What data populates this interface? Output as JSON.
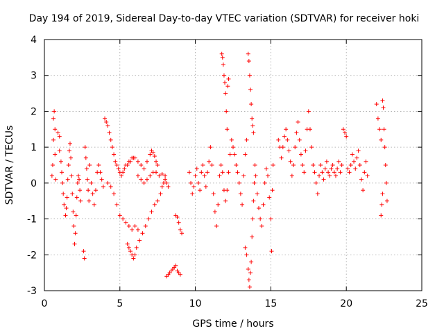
{
  "chart_data": {
    "type": "scatter",
    "title": "Day 194 of 2019, Sidereal Day-to-day VTEC variation (SDTVAR) for receiver hoki",
    "xlabel": "GPS time / hours",
    "ylabel": "SDTVAR / TECUs",
    "xlim": [
      0,
      25
    ],
    "ylim": [
      -3,
      4
    ],
    "xticks": [
      "0",
      "5",
      "10",
      "15",
      "20",
      "25"
    ],
    "yticks": [
      "-3",
      "-2",
      "-1",
      "0",
      "1",
      "2",
      "3",
      "4"
    ],
    "grid": true,
    "marker": "+",
    "color": "#ff0000",
    "series": [
      {
        "name": "SDTVAR",
        "points": [
          [
            0.5,
            0.2
          ],
          [
            0.55,
            0.5
          ],
          [
            0.6,
            1.2
          ],
          [
            0.6,
            1.8
          ],
          [
            0.65,
            2.0
          ],
          [
            0.7,
            1.5
          ],
          [
            0.7,
            0.8
          ],
          [
            0.75,
            0.1
          ],
          [
            0.9,
            1.4
          ],
          [
            1.0,
            1.3
          ],
          [
            1.0,
            0.9
          ],
          [
            1.1,
            0.6
          ],
          [
            1.15,
            0.3
          ],
          [
            1.2,
            0.0
          ],
          [
            1.25,
            -0.3
          ],
          [
            1.3,
            -0.6
          ],
          [
            1.4,
            -0.9
          ],
          [
            1.45,
            -0.7
          ],
          [
            1.5,
            -0.4
          ],
          [
            1.55,
            0.1
          ],
          [
            1.6,
            0.5
          ],
          [
            1.65,
            0.9
          ],
          [
            1.7,
            1.1
          ],
          [
            1.75,
            0.7
          ],
          [
            1.8,
            0.2
          ],
          [
            1.85,
            -0.3
          ],
          [
            1.9,
            -0.8
          ],
          [
            1.95,
            -1.2
          ],
          [
            2.0,
            -1.7
          ],
          [
            2.05,
            -1.4
          ],
          [
            2.1,
            -0.9
          ],
          [
            2.15,
            -0.4
          ],
          [
            2.2,
            0.0
          ],
          [
            2.25,
            0.2
          ],
          [
            2.3,
            0.1
          ],
          [
            2.35,
            -0.2
          ],
          [
            2.4,
            -0.5
          ],
          [
            2.6,
            -1.9
          ],
          [
            2.65,
            -2.1
          ],
          [
            2.7,
            1.0
          ],
          [
            2.75,
            0.7
          ],
          [
            2.8,
            0.4
          ],
          [
            2.85,
            0.1
          ],
          [
            2.9,
            -0.2
          ],
          [
            2.95,
            -0.5
          ],
          [
            3.0,
            0.5
          ],
          [
            3.1,
            0.0
          ],
          [
            3.2,
            -0.3
          ],
          [
            3.3,
            -0.6
          ],
          [
            3.4,
            -0.2
          ],
          [
            3.5,
            0.3
          ],
          [
            3.6,
            0.5
          ],
          [
            3.7,
            0.3
          ],
          [
            3.8,
            0.1
          ],
          [
            3.9,
            -0.1
          ],
          [
            4.0,
            1.8
          ],
          [
            4.1,
            1.7
          ],
          [
            4.2,
            1.6
          ],
          [
            4.3,
            1.4
          ],
          [
            4.4,
            1.2
          ],
          [
            4.5,
            1.0
          ],
          [
            4.6,
            0.8
          ],
          [
            4.7,
            0.6
          ],
          [
            4.8,
            0.5
          ],
          [
            4.9,
            0.4
          ],
          [
            5.0,
            0.3
          ],
          [
            5.1,
            0.2
          ],
          [
            5.2,
            0.3
          ],
          [
            5.3,
            0.4
          ],
          [
            5.4,
            0.5
          ],
          [
            5.5,
            0.5
          ],
          [
            5.6,
            0.6
          ],
          [
            5.7,
            0.6
          ],
          [
            5.8,
            0.7
          ],
          [
            5.9,
            0.7
          ],
          [
            6.0,
            0.7
          ],
          [
            6.2,
            0.6
          ],
          [
            6.4,
            0.5
          ],
          [
            6.6,
            0.4
          ],
          [
            6.8,
            0.6
          ],
          [
            7.0,
            0.8
          ],
          [
            7.1,
            0.9
          ],
          [
            7.2,
            0.85
          ],
          [
            7.3,
            0.75
          ],
          [
            7.4,
            0.6
          ],
          [
            7.5,
            0.5
          ],
          [
            4.2,
            0.0
          ],
          [
            4.4,
            -0.1
          ],
          [
            4.6,
            -0.3
          ],
          [
            4.8,
            -0.6
          ],
          [
            5.0,
            -0.9
          ],
          [
            5.2,
            -1.0
          ],
          [
            5.4,
            -1.1
          ],
          [
            5.6,
            -1.2
          ],
          [
            5.8,
            -1.3
          ],
          [
            6.0,
            -1.2
          ],
          [
            6.2,
            -1.3
          ],
          [
            5.5,
            -1.7
          ],
          [
            5.6,
            -1.8
          ],
          [
            5.7,
            -1.9
          ],
          [
            5.8,
            -2.0
          ],
          [
            5.9,
            -2.1
          ],
          [
            6.0,
            -2.0
          ],
          [
            6.1,
            -1.8
          ],
          [
            6.3,
            -1.6
          ],
          [
            6.5,
            -1.4
          ],
          [
            6.7,
            -1.2
          ],
          [
            6.9,
            -1.0
          ],
          [
            7.1,
            -0.8
          ],
          [
            7.3,
            -0.6
          ],
          [
            7.5,
            -0.5
          ],
          [
            7.7,
            -0.3
          ],
          [
            7.8,
            -0.1
          ],
          [
            7.9,
            0.0
          ],
          [
            8.0,
            0.1
          ],
          [
            8.1,
            0.0
          ],
          [
            8.2,
            -0.1
          ],
          [
            6.2,
            0.2
          ],
          [
            6.4,
            0.1
          ],
          [
            6.6,
            0.0
          ],
          [
            6.8,
            0.1
          ],
          [
            7.0,
            0.2
          ],
          [
            7.2,
            0.3
          ],
          [
            7.4,
            0.3
          ],
          [
            7.6,
            0.2
          ],
          [
            7.8,
            0.25
          ],
          [
            8.0,
            0.2
          ],
          [
            8.1,
            -2.6
          ],
          [
            8.2,
            -2.55
          ],
          [
            8.3,
            -2.5
          ],
          [
            8.4,
            -2.45
          ],
          [
            8.5,
            -2.4
          ],
          [
            8.6,
            -2.35
          ],
          [
            8.7,
            -2.3
          ],
          [
            8.8,
            -2.45
          ],
          [
            8.9,
            -2.5
          ],
          [
            9.0,
            -2.55
          ],
          [
            8.7,
            -0.9
          ],
          [
            8.8,
            -0.95
          ],
          [
            8.9,
            -1.1
          ],
          [
            9.0,
            -1.3
          ],
          [
            9.1,
            -1.4
          ],
          [
            9.6,
            0.3
          ],
          [
            9.7,
            0.0
          ],
          [
            9.8,
            -0.3
          ],
          [
            9.9,
            -0.1
          ],
          [
            10.0,
            0.2
          ],
          [
            10.1,
            0.4
          ],
          [
            10.2,
            0.0
          ],
          [
            10.3,
            -0.2
          ],
          [
            10.4,
            0.3
          ],
          [
            10.5,
            0.5
          ],
          [
            10.6,
            0.2
          ],
          [
            10.7,
            -0.1
          ],
          [
            10.8,
            0.3
          ],
          [
            10.9,
            0.6
          ],
          [
            11.0,
            1.0
          ],
          [
            11.1,
            0.5
          ],
          [
            11.2,
            -0.3
          ],
          [
            11.3,
            -0.8
          ],
          [
            11.4,
            -1.2
          ],
          [
            11.5,
            -0.6
          ],
          [
            11.6,
            0.2
          ],
          [
            11.7,
            0.5
          ],
          [
            11.8,
            0.3
          ],
          [
            11.9,
            -0.2
          ],
          [
            12.0,
            -0.5
          ],
          [
            12.1,
            -0.2
          ],
          [
            12.2,
            0.3
          ],
          [
            12.3,
            0.8
          ],
          [
            12.4,
            1.2
          ],
          [
            12.5,
            1.0
          ],
          [
            12.6,
            0.8
          ],
          [
            11.75,
            3.6
          ],
          [
            11.8,
            3.5
          ],
          [
            11.85,
            3.3
          ],
          [
            11.9,
            3.0
          ],
          [
            11.95,
            2.8
          ],
          [
            12.0,
            2.5
          ],
          [
            12.05,
            2.0
          ],
          [
            12.1,
            1.5
          ],
          [
            12.15,
            2.7
          ],
          [
            12.2,
            2.9
          ],
          [
            12.7,
            0.5
          ],
          [
            12.8,
            0.3
          ],
          [
            12.9,
            0.0
          ],
          [
            13.0,
            -0.3
          ],
          [
            13.1,
            -0.6
          ],
          [
            13.2,
            0.2
          ],
          [
            13.3,
            0.8
          ],
          [
            13.4,
            1.2
          ],
          [
            13.5,
            3.6
          ],
          [
            13.55,
            3.4
          ],
          [
            13.6,
            3.0
          ],
          [
            13.65,
            2.6
          ],
          [
            13.7,
            2.2
          ],
          [
            13.75,
            1.8
          ],
          [
            13.8,
            1.6
          ],
          [
            13.85,
            1.4
          ],
          [
            13.3,
            -1.8
          ],
          [
            13.4,
            -2.0
          ],
          [
            13.5,
            -2.4
          ],
          [
            13.55,
            -2.7
          ],
          [
            13.6,
            -2.9
          ],
          [
            13.65,
            -2.5
          ],
          [
            13.7,
            -2.2
          ],
          [
            13.75,
            -1.5
          ],
          [
            13.8,
            -1.0
          ],
          [
            13.85,
            -0.5
          ],
          [
            13.9,
            0.0
          ],
          [
            13.95,
            0.5
          ],
          [
            14.0,
            0.2
          ],
          [
            14.1,
            -0.3
          ],
          [
            14.2,
            -0.7
          ],
          [
            14.3,
            -1.0
          ],
          [
            14.4,
            -1.2
          ],
          [
            14.5,
            -0.6
          ],
          [
            14.6,
            0.0
          ],
          [
            14.7,
            0.4
          ],
          [
            14.8,
            0.2
          ],
          [
            14.9,
            -0.4
          ],
          [
            15.0,
            -1.0
          ],
          [
            15.05,
            -1.9
          ],
          [
            15.1,
            -0.2
          ],
          [
            15.15,
            0.5
          ],
          [
            15.5,
            1.2
          ],
          [
            15.6,
            1.0
          ],
          [
            15.7,
            0.7
          ],
          [
            15.8,
            1.0
          ],
          [
            15.9,
            1.3
          ],
          [
            16.0,
            1.5
          ],
          [
            16.1,
            1.2
          ],
          [
            16.2,
            0.9
          ],
          [
            16.3,
            0.6
          ],
          [
            16.4,
            0.2
          ],
          [
            16.5,
            0.5
          ],
          [
            16.6,
            1.0
          ],
          [
            16.7,
            1.4
          ],
          [
            16.8,
            1.7
          ],
          [
            16.9,
            1.2
          ],
          [
            17.0,
            0.8
          ],
          [
            17.1,
            0.5
          ],
          [
            17.2,
            0.3
          ],
          [
            17.3,
            0.9
          ],
          [
            17.4,
            1.5
          ],
          [
            17.5,
            2.0
          ],
          [
            17.6,
            1.5
          ],
          [
            17.7,
            1.0
          ],
          [
            17.8,
            0.5
          ],
          [
            17.9,
            0.3
          ],
          [
            18.0,
            0.0
          ],
          [
            18.1,
            -0.3
          ],
          [
            18.2,
            0.2
          ],
          [
            18.3,
            0.5
          ],
          [
            18.4,
            0.3
          ],
          [
            18.5,
            0.1
          ],
          [
            18.6,
            0.4
          ],
          [
            18.7,
            0.6
          ],
          [
            18.8,
            0.3
          ],
          [
            18.9,
            0.2
          ],
          [
            19.0,
            0.4
          ],
          [
            19.1,
            0.5
          ],
          [
            19.2,
            0.3
          ],
          [
            19.3,
            0.2
          ],
          [
            19.4,
            0.4
          ],
          [
            19.5,
            0.6
          ],
          [
            19.6,
            0.3
          ],
          [
            19.7,
            0.5
          ],
          [
            19.8,
            1.5
          ],
          [
            19.9,
            1.4
          ],
          [
            20.0,
            1.3
          ],
          [
            20.1,
            0.4
          ],
          [
            20.2,
            0.3
          ],
          [
            20.3,
            0.5
          ],
          [
            20.4,
            0.8
          ],
          [
            20.5,
            0.6
          ],
          [
            20.6,
            0.4
          ],
          [
            20.7,
            0.7
          ],
          [
            20.8,
            0.9
          ],
          [
            20.9,
            0.5
          ],
          [
            21.0,
            0.1
          ],
          [
            21.1,
            -0.2
          ],
          [
            21.2,
            0.3
          ],
          [
            21.3,
            0.6
          ],
          [
            21.4,
            0.2
          ],
          [
            22.0,
            2.2
          ],
          [
            22.1,
            1.8
          ],
          [
            22.2,
            1.5
          ],
          [
            22.3,
            1.2
          ],
          [
            22.4,
            2.3
          ],
          [
            22.45,
            2.1
          ],
          [
            22.5,
            1.5
          ],
          [
            22.55,
            1.0
          ],
          [
            22.6,
            0.5
          ],
          [
            22.65,
            0.0
          ],
          [
            22.7,
            -0.5
          ],
          [
            22.3,
            -0.9
          ],
          [
            22.35,
            -0.6
          ],
          [
            22.4,
            -0.3
          ]
        ]
      }
    ]
  }
}
